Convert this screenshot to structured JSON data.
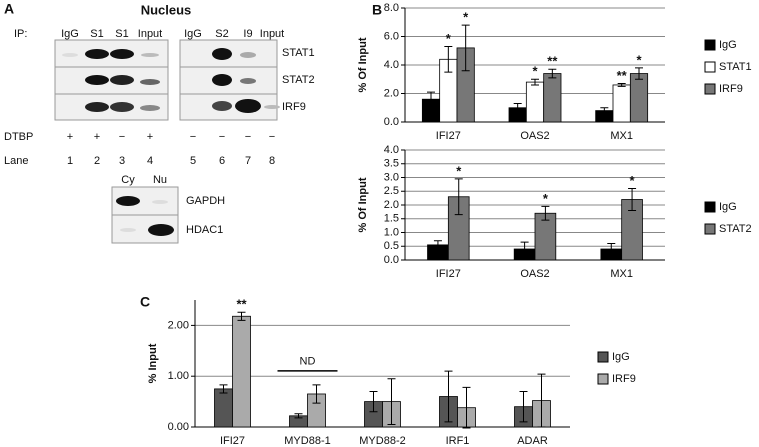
{
  "panel_a": {
    "label": "A",
    "title": "Nucleus",
    "ip_label": "IP:",
    "lanes": [
      "IgG",
      "S1",
      "S1",
      "Input",
      "IgG",
      "S2",
      "I9",
      "Input"
    ],
    "proteins": [
      "STAT1",
      "STAT2",
      "IRF9"
    ],
    "dtbp_label": "DTBP",
    "dtbp": [
      "+",
      "+",
      "−",
      "+",
      "−",
      "−",
      "−",
      "−"
    ],
    "lane_label": "Lane",
    "lane_numbers": [
      "1",
      "2",
      "3",
      "4",
      "5",
      "6",
      "7",
      "8"
    ],
    "fraction_lanes": [
      "Cy",
      "Nu"
    ],
    "fraction_proteins": [
      "GAPDH",
      "HDAC1"
    ]
  },
  "chart_data": [
    {
      "type": "bar",
      "panel_label": "B",
      "ylabel": "% Of Input",
      "categories": [
        "IFI27",
        "OAS2",
        "MX1"
      ],
      "series": [
        {
          "name": "IgG",
          "color": "#000000",
          "values": [
            1.6,
            1.0,
            0.8
          ],
          "errors": [
            0.5,
            0.3,
            0.2
          ]
        },
        {
          "name": "STAT1",
          "color": "#ffffff",
          "values": [
            4.4,
            2.8,
            2.6
          ],
          "errors": [
            0.9,
            0.2,
            0.1
          ],
          "sig": [
            "*",
            "*",
            "**"
          ]
        },
        {
          "name": "IRF9",
          "color": "#777777",
          "values": [
            5.2,
            3.4,
            3.4
          ],
          "errors": [
            1.6,
            0.3,
            0.4
          ],
          "sig": [
            "*",
            "**",
            "*"
          ]
        }
      ],
      "ylim": [
        0,
        8
      ],
      "yticks": [
        {
          "value": 0,
          "label": "0.0"
        },
        {
          "value": 2,
          "label": "2.0"
        },
        {
          "value": 4,
          "label": "4.0"
        },
        {
          "value": 6,
          "label": "6.0"
        },
        {
          "value": 8,
          "label": "8.0"
        }
      ],
      "grid": true,
      "legend": "right"
    },
    {
      "type": "bar",
      "ylabel": "% Of Input",
      "categories": [
        "IFI27",
        "OAS2",
        "MX1"
      ],
      "series": [
        {
          "name": "IgG",
          "color": "#000000",
          "values": [
            0.55,
            0.4,
            0.4
          ],
          "errors": [
            0.15,
            0.25,
            0.2
          ]
        },
        {
          "name": "STAT2",
          "color": "#777777",
          "values": [
            2.3,
            1.7,
            2.2
          ],
          "errors": [
            0.65,
            0.25,
            0.4
          ],
          "sig": [
            "*",
            "*",
            "*"
          ]
        }
      ],
      "ylim": [
        0,
        4
      ],
      "yticks": [
        {
          "value": 0,
          "label": "0.0"
        },
        {
          "value": 0.5,
          "label": "0.5"
        },
        {
          "value": 1,
          "label": "1.0"
        },
        {
          "value": 1.5,
          "label": "1.5"
        },
        {
          "value": 2,
          "label": "2.0"
        },
        {
          "value": 2.5,
          "label": "2.5"
        },
        {
          "value": 3,
          "label": "3.0"
        },
        {
          "value": 3.5,
          "label": "3.5"
        },
        {
          "value": 4,
          "label": "4.0"
        }
      ],
      "grid": true,
      "legend": "right"
    },
    {
      "type": "bar",
      "panel_label": "C",
      "ylabel": "% Input",
      "categories": [
        "IFI27",
        "MYD88-1",
        "MYD88-2",
        "IRF1",
        "ADAR"
      ],
      "notes": [
        null,
        "ND",
        null,
        null,
        null
      ],
      "series": [
        {
          "name": "IgG",
          "color": "#555555",
          "values": [
            0.75,
            0.22,
            0.5,
            0.6,
            0.4
          ],
          "errors": [
            0.08,
            0.04,
            0.2,
            0.5,
            0.3
          ]
        },
        {
          "name": "IRF9",
          "color": "#aaaaaa",
          "values": [
            2.18,
            0.65,
            0.5,
            0.38,
            0.52
          ],
          "errors": [
            0.08,
            0.18,
            0.45,
            0.4,
            0.52
          ],
          "sig": [
            "**",
            null,
            null,
            null,
            null
          ]
        }
      ],
      "ylim": [
        0,
        2.5
      ],
      "yticks": [
        {
          "value": 0,
          "label": "0.00"
        },
        {
          "value": 1,
          "label": "1.00"
        },
        {
          "value": 2,
          "label": "2.00"
        }
      ],
      "grid": true,
      "legend": "right"
    }
  ]
}
